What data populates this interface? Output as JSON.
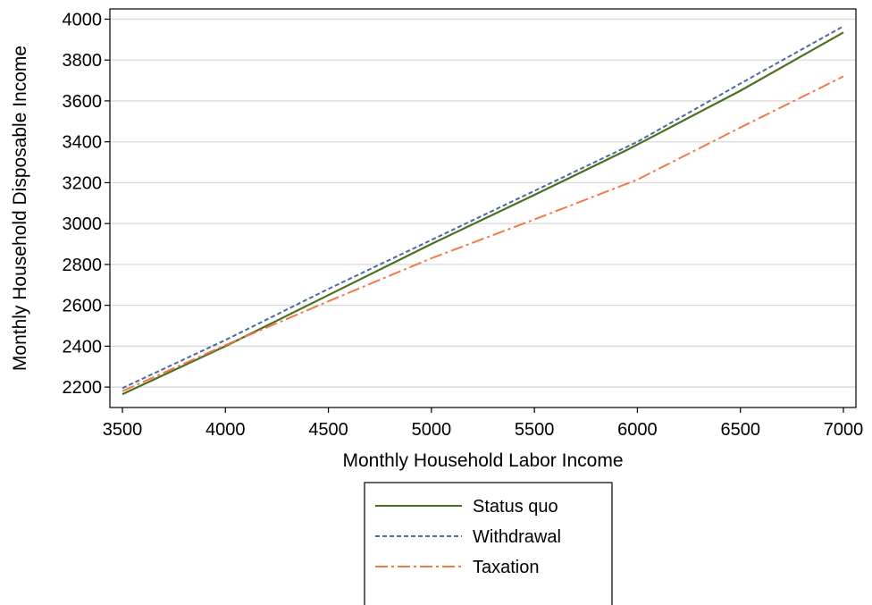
{
  "chart_data": {
    "type": "line",
    "xlabel": "Monthly Household Labor Income",
    "ylabel": "Monthly Household Disposable Income",
    "xlim": [
      3500,
      7000
    ],
    "ylim": [
      2100,
      4050
    ],
    "xticks": [
      3500,
      4000,
      4500,
      5000,
      5500,
      6000,
      6500,
      7000
    ],
    "yticks": [
      2200,
      2400,
      2600,
      2800,
      3000,
      3200,
      3400,
      3600,
      3800,
      4000
    ],
    "grid": "horizontal",
    "legend_position": "bottom-center",
    "series": [
      {
        "name": "Status quo",
        "style": "solid",
        "color": "#4c7022",
        "x": [
          3500,
          4000,
          4500,
          5000,
          5500,
          5950,
          6500,
          7000
        ],
        "y": [
          2165,
          2400,
          2650,
          2900,
          3140,
          3360,
          3650,
          3935
        ]
      },
      {
        "name": "Withdrawal",
        "style": "dashed",
        "color": "#4d6a9e",
        "x": [
          3500,
          4000,
          4500,
          5000,
          5500,
          6000,
          6500,
          7000
        ],
        "y": [
          2195,
          2430,
          2680,
          2920,
          3160,
          3400,
          3685,
          3965
        ]
      },
      {
        "name": "Taxation",
        "style": "dash-dot",
        "color": "#f27a4a",
        "x": [
          3500,
          4000,
          4500,
          5000,
          5500,
          6000,
          6500,
          7000
        ],
        "y": [
          2180,
          2405,
          2620,
          2830,
          3020,
          3215,
          3470,
          3720
        ]
      }
    ]
  }
}
